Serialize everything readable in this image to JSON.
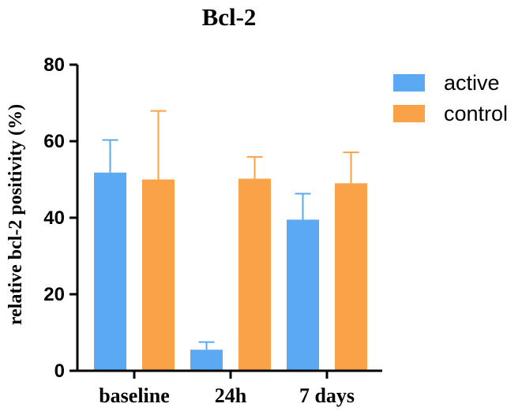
{
  "chart_data": {
    "type": "bar",
    "title": "Bcl-2",
    "xlabel": "",
    "ylabel": "relative bcl-2 positivity (%)",
    "ylim": [
      0,
      80
    ],
    "yticks": [
      0,
      20,
      40,
      60,
      80
    ],
    "grid": false,
    "legend_position": "top-right",
    "categories": [
      "baseline",
      "24h",
      "7 days"
    ],
    "series": [
      {
        "name": "active",
        "color": "#5AA9F2",
        "values": [
          51.8,
          5.5,
          39.5
        ],
        "errors": [
          8.5,
          2.0,
          6.8
        ]
      },
      {
        "name": "control",
        "color": "#F9A247",
        "values": [
          50.0,
          50.2,
          49.0
        ],
        "errors": [
          17.9,
          5.7,
          8.1
        ]
      }
    ]
  }
}
